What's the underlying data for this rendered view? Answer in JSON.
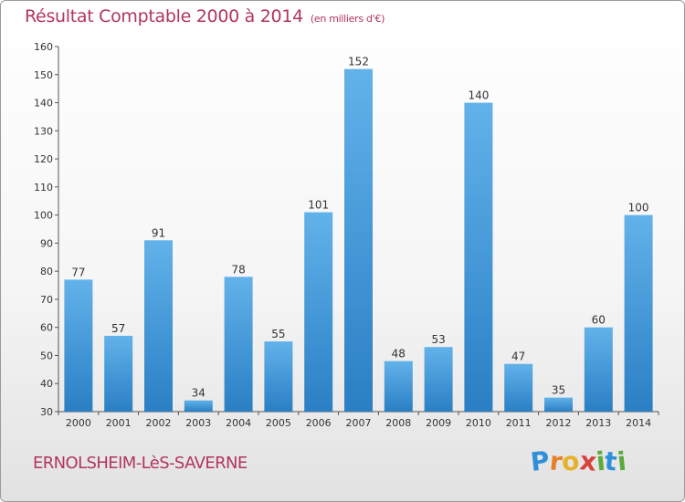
{
  "title": "Résultat Comptable 2000 à 2014",
  "subtitle": "(en milliers d'€)",
  "commune": "ERNOLSHEIM-LèS-SAVERNE",
  "brand": {
    "text": "Proxiti",
    "letters": [
      "P",
      "r",
      "o",
      "x",
      "i",
      "t",
      "i"
    ],
    "colors": [
      "#2f8fd8",
      "#e8802a",
      "#e7b12a",
      "#d8423a",
      "#5aaa3c",
      "#2f8fd8",
      "#5aaa3c"
    ]
  },
  "colors": {
    "bar_light": "#62b2ea",
    "bar_dark": "#2a7fc4",
    "title": "#b2355f"
  },
  "chart_data": {
    "type": "bar",
    "categories": [
      "2000",
      "2001",
      "2002",
      "2003",
      "2004",
      "2005",
      "2006",
      "2007",
      "2008",
      "2009",
      "2010",
      "2011",
      "2012",
      "2013",
      "2014"
    ],
    "values": [
      77,
      57,
      91,
      34,
      78,
      55,
      101,
      152,
      48,
      53,
      140,
      47,
      35,
      60,
      100
    ],
    "data_labels": [
      "77",
      "57",
      "91",
      "34",
      "78",
      "55",
      "101",
      "152",
      "48",
      "53",
      "140",
      "47",
      "35",
      "60",
      "100"
    ],
    "yticks": [
      "30",
      "40",
      "50",
      "60",
      "70",
      "80",
      "90",
      "100",
      "110",
      "120",
      "130",
      "140",
      "150",
      "160"
    ],
    "ylim": [
      30,
      160
    ],
    "grid": false
  }
}
